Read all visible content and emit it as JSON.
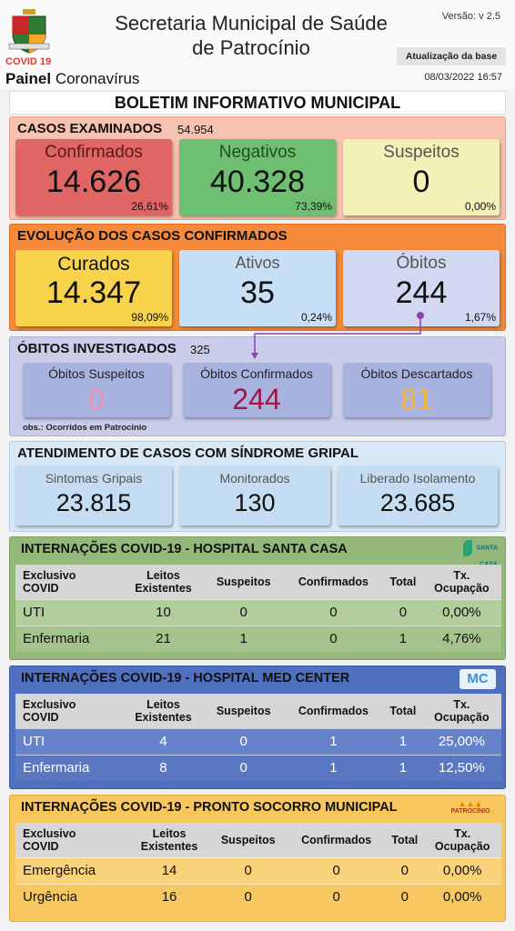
{
  "header": {
    "covid_tag": "COVID 19",
    "painel_bold": "Painel",
    "painel_rest": "Coronavírus",
    "title_line1": "Secretaria Municipal de Saúde",
    "title_line2": "de Patrocínio",
    "version": "Versão: v 2.5",
    "update_label": "Atualização da base",
    "update_date": "08/03/2022 16:57"
  },
  "bulletin_title": "BOLETIM INFORMATIVO MUNICIPAL",
  "examined": {
    "title": "CASOS EXAMINADOS",
    "count": "54.954",
    "cards": [
      {
        "label": "Confirmados",
        "value": "14.626",
        "pct": "26,61%"
      },
      {
        "label": "Negativos",
        "value": "40.328",
        "pct": "73,39%"
      },
      {
        "label": "Suspeitos",
        "value": "0",
        "pct": "0,00%"
      }
    ]
  },
  "evolution": {
    "title": "EVOLUÇÃO DOS CASOS CONFIRMADOS",
    "cards": [
      {
        "label": "Curados",
        "value": "14.347",
        "pct": "98,09%"
      },
      {
        "label": "Ativos",
        "value": "35",
        "pct": "0,24%"
      },
      {
        "label": "Óbitos",
        "value": "244",
        "pct": "1,67%"
      }
    ]
  },
  "deaths": {
    "title": "ÓBITOS INVESTIGADOS",
    "count": "325",
    "note": "obs.: Ocorridos em Patrocínio",
    "cards": [
      {
        "label": "Óbitos Suspeitos",
        "value": "0"
      },
      {
        "label": "Óbitos Confirmados",
        "value": "244"
      },
      {
        "label": "Óbitos Descartados",
        "value": "81"
      }
    ]
  },
  "flu": {
    "title": "ATENDIMENTO DE CASOS COM SÍNDROME GRIPAL",
    "cards": [
      {
        "label": "Sintomas Gripais",
        "value": "23.815"
      },
      {
        "label": "Monitorados",
        "value": "130"
      },
      {
        "label": "Liberado Isolamento",
        "value": "23.685"
      }
    ]
  },
  "table_headers": {
    "col1_line1": "Exclusivo",
    "col1_line2": "COVID",
    "col2_line1": "Leitos",
    "col2_line2": "Existentes",
    "col3": "Suspeitos",
    "col4": "Confirmados",
    "col5": "Total",
    "col6_line1": "Tx.",
    "col6_line2": "Ocupação"
  },
  "hospitals": [
    {
      "title": "INTERNAÇÕES COVID-19 - HOSPITAL SANTA CASA",
      "logo_text": "SANTA CASA",
      "rows": [
        {
          "name": "UTI",
          "leitos": "10",
          "suspeitos": "0",
          "confirmados": "0",
          "total": "0",
          "tx": "0,00%"
        },
        {
          "name": "Enfermaria",
          "leitos": "21",
          "suspeitos": "1",
          "confirmados": "0",
          "total": "1",
          "tx": "4,76%"
        }
      ]
    },
    {
      "title": "INTERNAÇÕES COVID-19 - HOSPITAL MED CENTER",
      "logo_text": "MC",
      "rows": [
        {
          "name": "UTI",
          "leitos": "4",
          "suspeitos": "0",
          "confirmados": "1",
          "total": "1",
          "tx": "25,00%"
        },
        {
          "name": "Enfermaria",
          "leitos": "8",
          "suspeitos": "0",
          "confirmados": "1",
          "total": "1",
          "tx": "12,50%"
        }
      ]
    },
    {
      "title": "INTERNAÇÕES COVID-19 - PRONTO SOCORRO MUNICIPAL",
      "logo_text": "PATROCÍNIO",
      "rows": [
        {
          "name": "Emergência",
          "leitos": "14",
          "suspeitos": "0",
          "confirmados": "0",
          "total": "0",
          "tx": "0,00%"
        },
        {
          "name": "Urgência",
          "leitos": "16",
          "suspeitos": "0",
          "confirmados": "0",
          "total": "0",
          "tx": "0,00%"
        }
      ]
    }
  ],
  "colors": {
    "confirmados": "#e06666",
    "negativos": "#6fbf73",
    "suspeitos": "#f3f0b8",
    "curados": "#f7d44c",
    "ativos_obitos": "#c7dff7",
    "death_cards": "#a9b3df",
    "flu_cards": "#c4ddf3",
    "santa_casa": "#94b77a",
    "med_center": "#4f6fbf",
    "pronto_socorro": "#f7c65c"
  }
}
